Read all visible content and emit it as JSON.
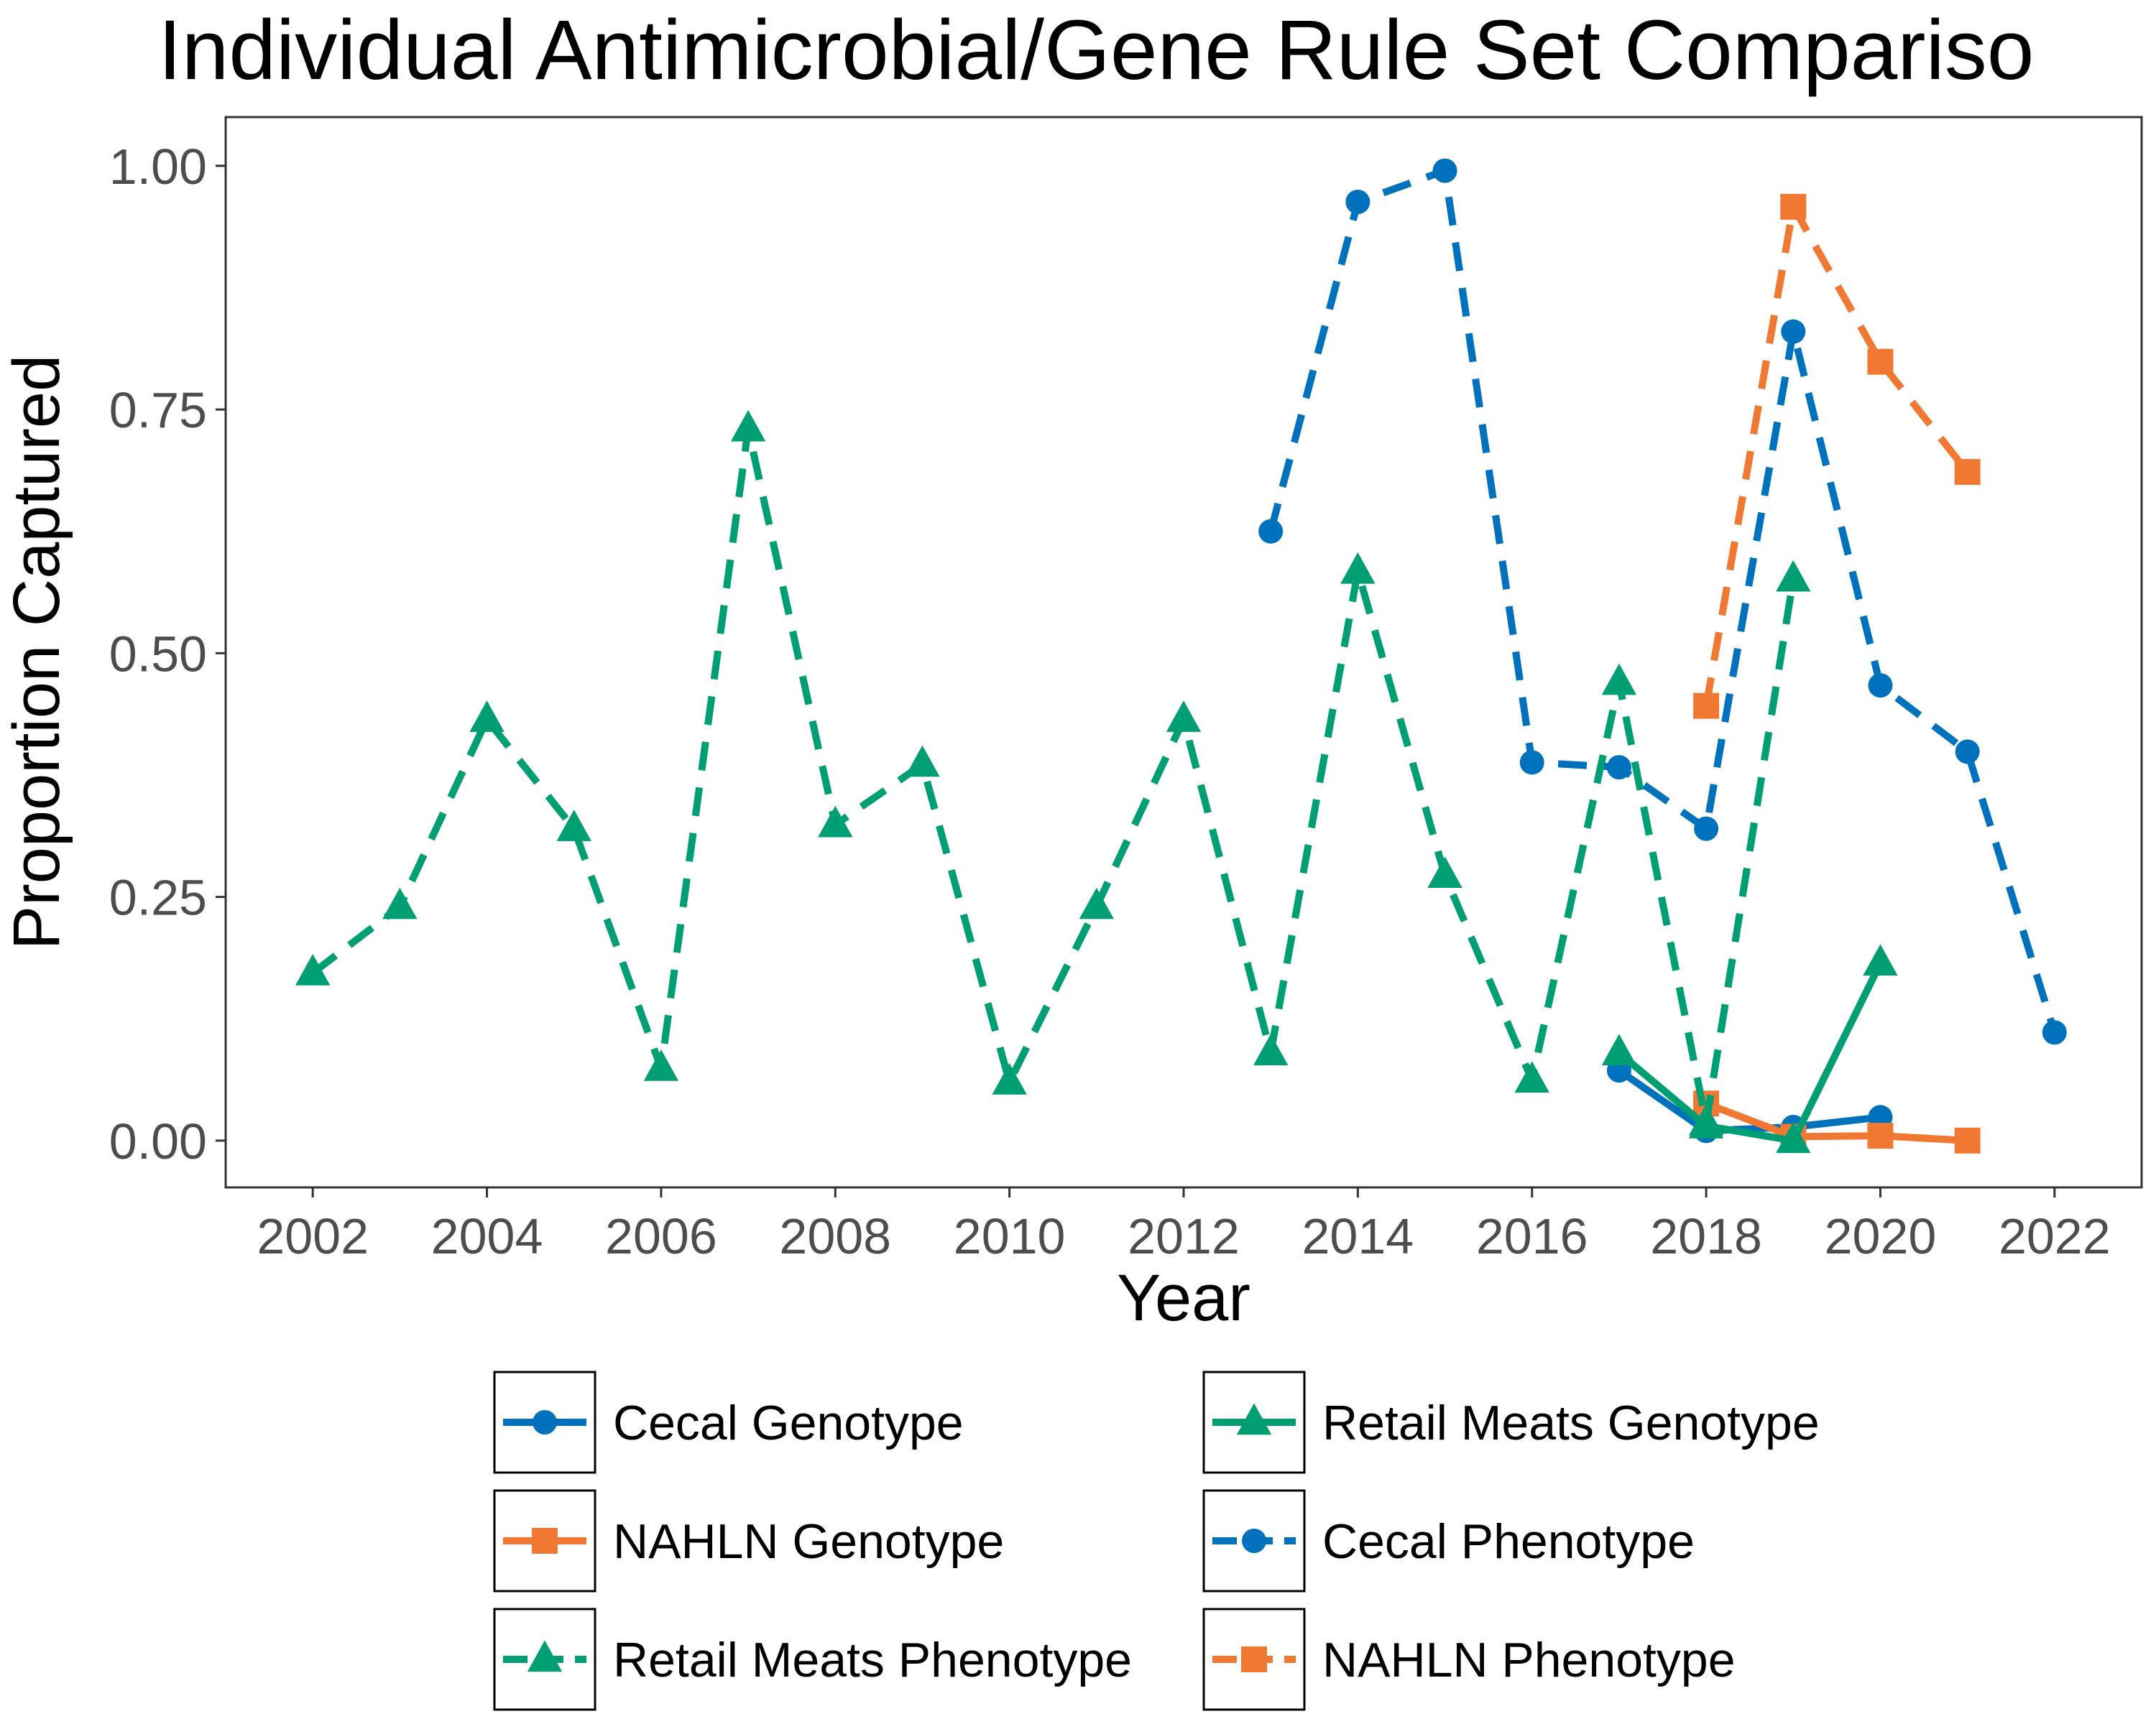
{
  "chart_data": {
    "type": "line",
    "title": "Individual Antimicrobial/Gene Rule Set Compariso",
    "xlabel": "Year",
    "ylabel": "Proportion Captured",
    "xlim": [
      2001,
      2023
    ],
    "ylim": [
      -0.048,
      1.05
    ],
    "x_ticks": [
      2002,
      2004,
      2006,
      2008,
      2010,
      2012,
      2014,
      2016,
      2018,
      2020,
      2022
    ],
    "x_tick_labels": [
      "2002",
      "2004",
      "2006",
      "2008",
      "2010",
      "2012",
      "2014",
      "2016",
      "2018",
      "2020",
      "2022"
    ],
    "y_ticks": [
      0,
      0.25,
      0.5,
      0.75,
      1.0
    ],
    "y_tick_labels": [
      "0.00",
      "0.25",
      "0.50",
      "0.75",
      "1.00"
    ],
    "grid": false,
    "legend_position": "bottom",
    "series": [
      {
        "name": "Cecal Genotype",
        "color": "#0072BD",
        "line": "solid",
        "marker": "circle",
        "points": [
          [
            2017,
            0.072
          ],
          [
            2018,
            0.01
          ],
          [
            2019,
            0.014
          ],
          [
            2020,
            0.024
          ]
        ]
      },
      {
        "name": "NAHLN Genotype",
        "color": "#F07832",
        "line": "solid",
        "marker": "square",
        "points": [
          [
            2018,
            0.038
          ],
          [
            2019,
            0.004
          ],
          [
            2020,
            0.005
          ],
          [
            2021,
            0.0
          ]
        ]
      },
      {
        "name": "Retail Meats Phenotype",
        "color": "#009E73",
        "line": "dashed",
        "marker": "triangle",
        "points": [
          [
            2002,
            0.172
          ],
          [
            2003,
            0.24
          ],
          [
            2004,
            0.432
          ],
          [
            2005,
            0.32
          ],
          [
            2006,
            0.074
          ],
          [
            2007,
            0.73
          ],
          [
            2008,
            0.324
          ],
          [
            2009,
            0.386
          ],
          [
            2010,
            0.06
          ],
          [
            2011,
            0.24
          ],
          [
            2012,
            0.432
          ],
          [
            2013,
            0.09
          ],
          [
            2014,
            0.584
          ],
          [
            2015,
            0.272
          ],
          [
            2016,
            0.062
          ],
          [
            2017,
            0.47
          ],
          [
            2018,
            0.018
          ],
          [
            2019,
            0.576
          ]
        ]
      },
      {
        "name": "Retail Meats Genotype",
        "color": "#009E73",
        "line": "solid",
        "marker": "triangle",
        "points": [
          [
            2017,
            0.09
          ],
          [
            2018,
            0.015
          ],
          [
            2019,
            0.0
          ],
          [
            2020,
            0.182
          ]
        ]
      },
      {
        "name": "Cecal Phenotype",
        "color": "#0072BD",
        "line": "dashed",
        "marker": "circle",
        "points": [
          [
            2013,
            0.625
          ],
          [
            2014,
            0.963
          ],
          [
            2015,
            0.995
          ],
          [
            2016,
            0.388
          ],
          [
            2017,
            0.383
          ],
          [
            2018,
            0.32
          ],
          [
            2019,
            0.83
          ],
          [
            2020,
            0.467
          ],
          [
            2021,
            0.399
          ],
          [
            2022,
            0.111
          ]
        ]
      },
      {
        "name": "NAHLN Phenotype",
        "color": "#F07832",
        "line": "dashed",
        "marker": "square",
        "points": [
          [
            2018,
            0.446
          ],
          [
            2019,
            0.958
          ],
          [
            2020,
            0.799
          ],
          [
            2021,
            0.686
          ]
        ]
      }
    ],
    "legend_order": [
      "Cecal Genotype",
      "NAHLN Genotype",
      "Retail Meats Phenotype",
      "Retail Meats Genotype",
      "Cecal Phenotype",
      "NAHLN Phenotype"
    ]
  }
}
